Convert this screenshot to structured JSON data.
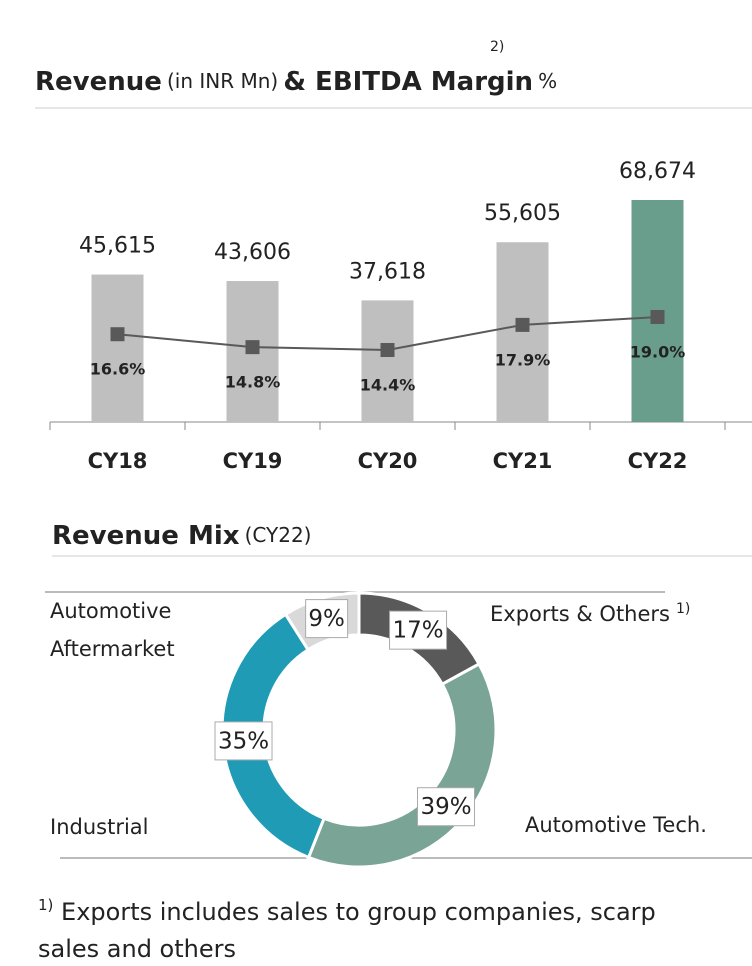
{
  "chart_data": [
    {
      "type": "bar",
      "title_parts": [
        "Revenue",
        "(in INR Mn)",
        "& EBITDA Margin",
        "%"
      ],
      "title_note": "2)",
      "categories": [
        "CY18",
        "CY19",
        "CY20",
        "CY21",
        "CY22"
      ],
      "values": [
        45615,
        43606,
        37618,
        55605,
        68674
      ],
      "value_labels": [
        "45,615",
        "43,606",
        "37,618",
        "55,605",
        "68,674"
      ],
      "colors": [
        "#bfbfbf",
        "#bfbfbf",
        "#bfbfbf",
        "#bfbfbf",
        "#6a9e8c"
      ],
      "line": {
        "type": "line",
        "values": [
          16.6,
          14.8,
          14.4,
          17.9,
          19.0
        ],
        "value_labels": [
          "16.6%",
          "14.8%",
          "14.4%",
          "17.9%",
          "19.0%"
        ],
        "color": "#595959"
      }
    },
    {
      "type": "pie",
      "title": "Revenue Mix",
      "subtitle": "(CY22)",
      "categories": [
        "Exports & Others",
        "Automotive Tech.",
        "Industrial",
        "Automotive Aftermarket"
      ],
      "category_note": "1)",
      "values": [
        17,
        39,
        35,
        9
      ],
      "value_labels": [
        "17%",
        "39%",
        "35%",
        "9%"
      ],
      "colors": [
        "#595959",
        "#7aa596",
        "#1f9bb5",
        "#d9d9d9"
      ]
    }
  ],
  "footnote": {
    "mark": "1)",
    "text_lines": [
      "Exports includes sales to group companies, scarp",
      "sales and others"
    ]
  }
}
